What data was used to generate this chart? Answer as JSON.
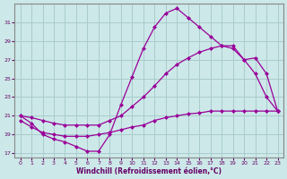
{
  "xlabel": "Windchill (Refroidissement éolien,°C)",
  "xlim": [
    -0.5,
    23.5
  ],
  "ylim": [
    16.5,
    33
  ],
  "yticks": [
    17,
    19,
    21,
    23,
    25,
    27,
    29,
    31
  ],
  "xticks": [
    0,
    1,
    2,
    3,
    4,
    5,
    6,
    7,
    8,
    9,
    10,
    11,
    12,
    13,
    14,
    15,
    16,
    17,
    18,
    19,
    20,
    21,
    22,
    23
  ],
  "bg_color": "#cce8e8",
  "grid_color": "#aacccc",
  "line_color": "#990099",
  "line1_x": [
    0,
    1,
    2,
    3,
    4,
    5,
    6,
    7,
    8,
    9,
    10,
    11,
    12,
    13,
    14,
    15,
    16,
    17,
    18,
    19,
    20,
    21,
    22,
    23
  ],
  "line1_y": [
    21.0,
    20.2,
    19.0,
    18.5,
    18.2,
    17.7,
    17.2,
    17.2,
    19.0,
    22.2,
    25.2,
    28.2,
    30.5,
    32.0,
    32.5,
    31.5,
    30.5,
    29.5,
    28.5,
    28.2,
    27.0,
    25.5,
    23.0,
    21.5
  ],
  "line2_x": [
    0,
    1,
    2,
    3,
    4,
    5,
    6,
    7,
    8,
    9,
    10,
    11,
    12,
    13,
    14,
    15,
    16,
    17,
    18,
    19,
    20,
    21,
    22,
    23
  ],
  "line2_y": [
    21.0,
    20.8,
    20.5,
    20.2,
    20.0,
    20.0,
    20.0,
    20.0,
    20.5,
    21.0,
    22.0,
    23.0,
    24.2,
    25.5,
    26.5,
    27.2,
    27.8,
    28.2,
    28.5,
    28.5,
    27.0,
    27.2,
    25.5,
    21.5
  ],
  "line3_x": [
    0,
    1,
    2,
    3,
    4,
    5,
    6,
    7,
    8,
    9,
    10,
    11,
    12,
    13,
    14,
    15,
    16,
    17,
    18,
    19,
    20,
    21,
    22,
    23
  ],
  "line3_y": [
    20.5,
    19.8,
    19.2,
    19.0,
    18.8,
    18.8,
    18.8,
    19.0,
    19.2,
    19.5,
    19.8,
    20.0,
    20.5,
    20.8,
    21.0,
    21.2,
    21.3,
    21.5,
    21.5,
    21.5,
    21.5,
    21.5,
    21.5,
    21.5
  ]
}
